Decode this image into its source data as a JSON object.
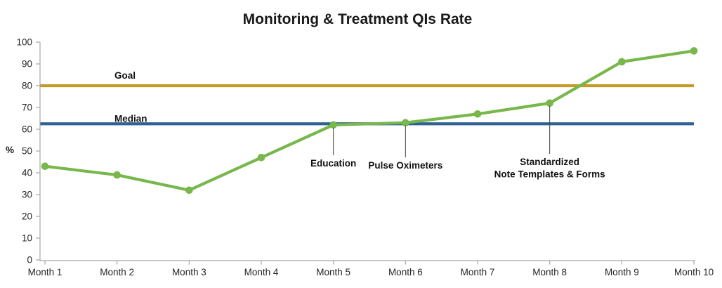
{
  "chart_data": {
    "type": "line",
    "title": "Monitoring & Treatment QIs Rate",
    "ylabel": "%",
    "xlabel": "",
    "categories": [
      "Month 1",
      "Month 2",
      "Month 3",
      "Month 4",
      "Month 5",
      "Month 6",
      "Month 7",
      "Month 8",
      "Month 9",
      "Month 10"
    ],
    "series": [
      {
        "name": "Monitoring & Treatment QIs Rate",
        "color": "#77B74C",
        "marker": "circle",
        "values": [
          43,
          39,
          32,
          47,
          62,
          63,
          67,
          72,
          91,
          96
        ]
      }
    ],
    "reference_lines": [
      {
        "label": "Goal",
        "value": 80,
        "color": "#C49A28"
      },
      {
        "label": "Median",
        "value": 62.5,
        "color": "#2F6293"
      }
    ],
    "annotations": [
      {
        "lines": [
          "Education"
        ],
        "category_index": 4,
        "value": 62
      },
      {
        "lines": [
          "Pulse Oximeters"
        ],
        "category_index": 5,
        "value": 63
      },
      {
        "lines": [
          "Standardized",
          "Note Templates & Forms"
        ],
        "category_index": 7,
        "value": 72
      }
    ],
    "ylim": [
      0,
      100
    ],
    "ytick_step": 10,
    "grid": false,
    "legend": false,
    "axis_color": "#A6A6A6",
    "connector_color": "#404040"
  }
}
